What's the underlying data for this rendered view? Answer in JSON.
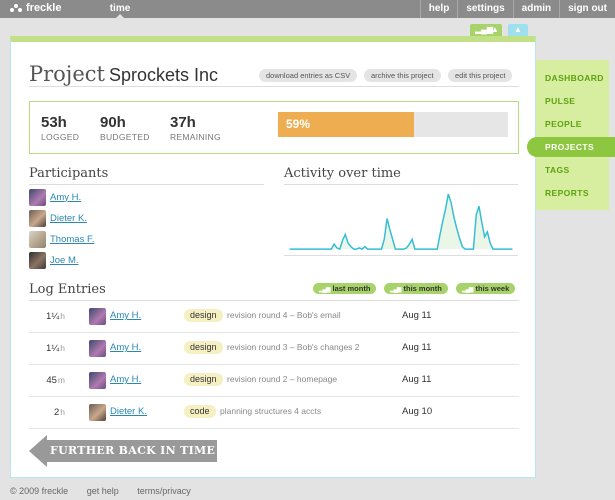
{
  "topbar": {
    "logo": "freckle",
    "time_tab": "time",
    "nav": [
      "help",
      "settings",
      "admin",
      "sign out"
    ]
  },
  "project": {
    "title_prefix": "Project",
    "name": "Sprockets Inc",
    "actions": [
      "download entries as CSV",
      "archive this project",
      "edit this project"
    ]
  },
  "stats": {
    "logged": {
      "value": "53h",
      "label": "LOGGED"
    },
    "budgeted": {
      "value": "90h",
      "label": "BUDGETED"
    },
    "remaining": {
      "value": "37h",
      "label": "REMAINING"
    },
    "progress_label": "59%",
    "progress_fraction": 0.59,
    "progress_color": "#efad52"
  },
  "participants": {
    "heading": "Participants",
    "people": [
      "Amy H.",
      "Dieter K.",
      "Thomas F.",
      "Joe M."
    ]
  },
  "activity": {
    "heading": "Activity over time"
  },
  "chart_data": {
    "type": "area",
    "values": [
      0,
      0,
      0,
      0,
      0,
      0,
      0,
      0,
      0,
      0,
      0,
      0,
      0,
      0,
      0,
      0,
      4,
      1,
      0,
      7,
      12,
      5,
      2,
      0,
      0,
      1,
      0,
      2,
      0,
      0,
      0,
      0,
      0,
      0,
      8,
      25,
      16,
      8,
      0,
      0,
      0,
      0,
      1,
      4,
      8,
      0,
      0,
      0,
      0,
      0,
      0,
      0,
      0,
      0,
      12,
      23,
      33,
      45,
      38,
      26,
      17,
      9,
      2,
      0,
      0,
      0,
      0,
      28,
      35,
      22,
      10,
      14,
      5,
      0,
      0,
      0,
      0,
      0,
      0,
      0,
      0
    ],
    "ylim": [
      0,
      50
    ],
    "line_color": "#36bcd6",
    "fill_color": "#e9f6e8"
  },
  "log": {
    "heading": "Log Entries",
    "filters": [
      "last month",
      "this month",
      "this week"
    ],
    "entries": [
      {
        "hours": "1¼",
        "unit": "h",
        "user": "Amy H.",
        "tag": "design",
        "desc": "revision round 4 – Bob's email",
        "date": "Aug 11"
      },
      {
        "hours": "1¼",
        "unit": "h",
        "user": "Amy H.",
        "tag": "design",
        "desc": "revision round 3 – Bob's changes 2",
        "date": "Aug 11"
      },
      {
        "hours": "45",
        "unit": "m",
        "user": "Amy H.",
        "tag": "design",
        "desc": "revision round 2 – homepage",
        "date": "Aug 11"
      },
      {
        "hours": "2",
        "unit": "h",
        "user": "Dieter K.",
        "tag": "code",
        "desc": "planning structures 4 accts",
        "date": "Aug 10"
      }
    ],
    "back_button": "FURTHER BACK IN TIME"
  },
  "sidebar": {
    "items": [
      "DASHBOARD",
      "PULSE",
      "PEOPLE",
      "PROJECTS",
      "TAGS",
      "REPORTS"
    ],
    "active": "PROJECTS"
  },
  "footer": [
    "© 2009 freckle",
    "get help",
    "terms/privacy"
  ]
}
